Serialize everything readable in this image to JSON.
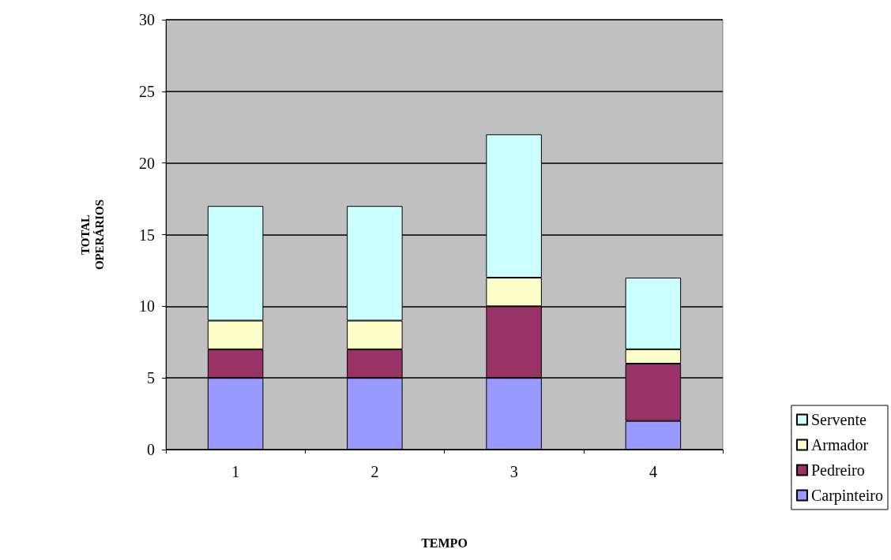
{
  "chart_data": {
    "type": "bar",
    "stacked": true,
    "xlabel": "TEMPO",
    "ylabel": "TOTAL\nOPERÁRIOS",
    "categories": [
      "1",
      "2",
      "3",
      "4"
    ],
    "series": [
      {
        "name": "Carpinteiro",
        "color": "#9999ff",
        "values": [
          5,
          5,
          5,
          2
        ]
      },
      {
        "name": "Pedreiro",
        "color": "#993366",
        "values": [
          2,
          2,
          5,
          4
        ]
      },
      {
        "name": "Armador",
        "color": "#ffffcc",
        "values": [
          2,
          2,
          2,
          1
        ]
      },
      {
        "name": "Servente",
        "color": "#ccffff",
        "values": [
          8,
          8,
          10,
          5
        ]
      }
    ],
    "ylim": [
      0,
      30
    ],
    "yticks": [
      0,
      5,
      10,
      15,
      20,
      25,
      30
    ],
    "grid": "y",
    "legend": "bottom right"
  }
}
